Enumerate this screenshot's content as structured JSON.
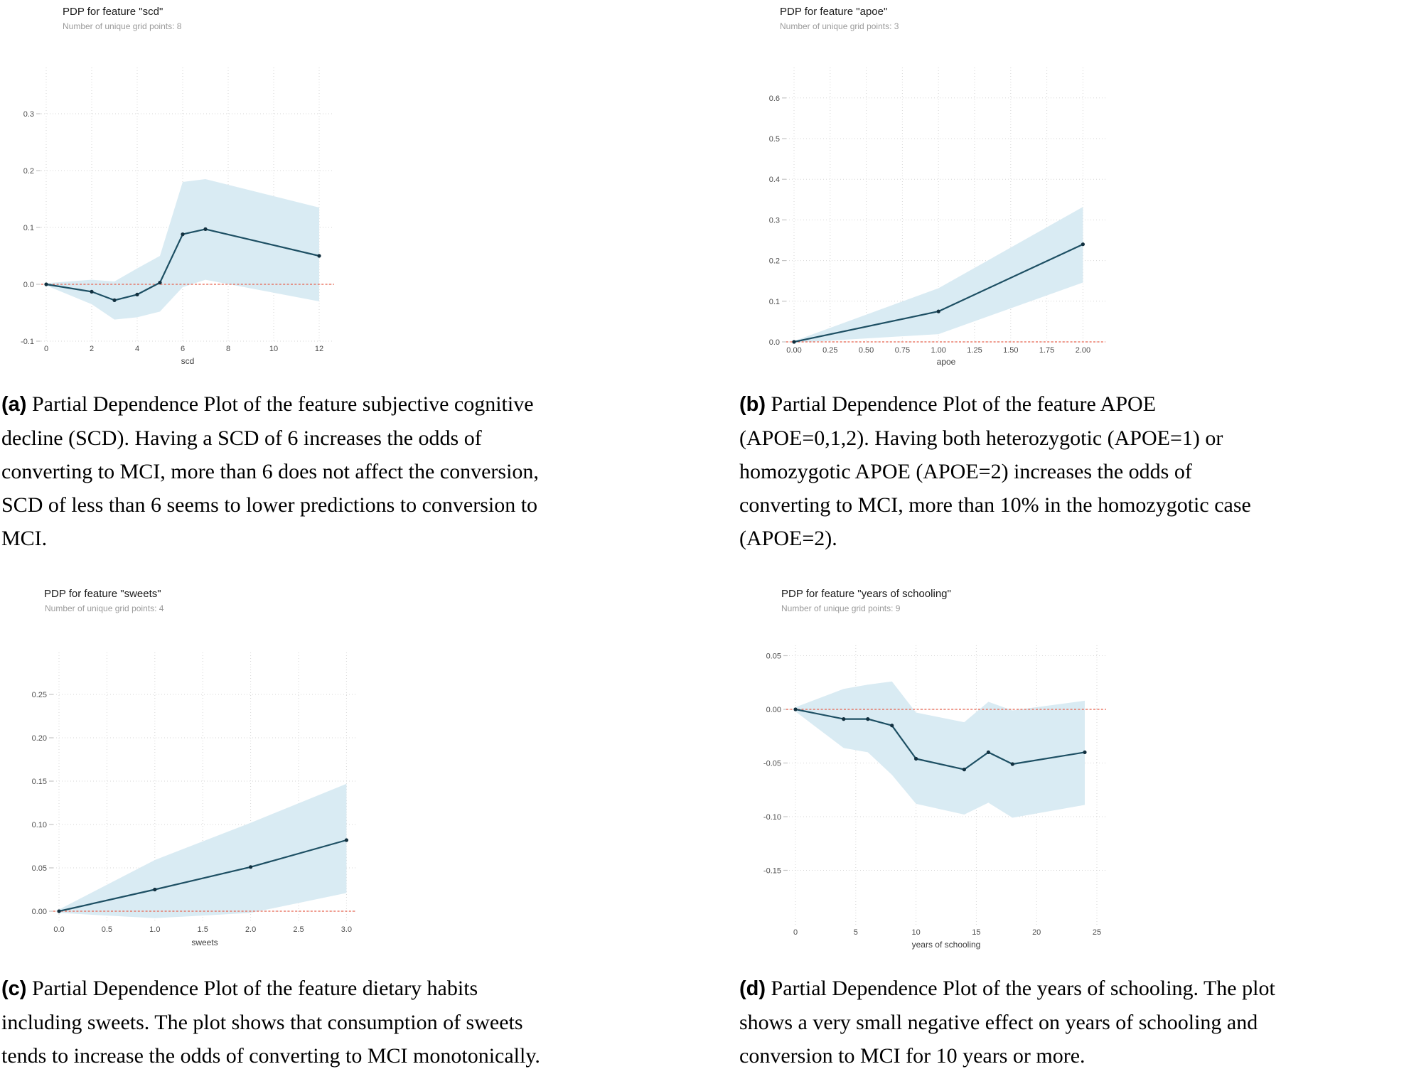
{
  "figure": {
    "description": "Four partial dependence plots (PDP) with captions",
    "accent_colors": {
      "line": "#1d4f63",
      "band": "#d9ebf3",
      "zero_line": "#e8604c",
      "gridline": "#d6d6d6",
      "subtitle_gray": "#9a9a9a"
    }
  },
  "chart_data": [
    {
      "id": "a",
      "type": "line",
      "title": "PDP for feature \"scd\"",
      "subtitle": "Number of unique grid points: 8",
      "xlabel": "scd",
      "ylabel": "",
      "x": [
        0,
        2,
        3,
        4,
        5,
        6,
        7,
        12
      ],
      "y": [
        0.0,
        -0.013,
        -0.028,
        -0.018,
        0.003,
        0.088,
        0.097,
        0.05
      ],
      "band_upper": [
        0.002,
        0.008,
        0.005,
        0.028,
        0.05,
        0.18,
        0.185,
        0.135
      ],
      "band_lower": [
        -0.002,
        -0.035,
        -0.062,
        -0.058,
        -0.048,
        -0.005,
        0.008,
        -0.03
      ],
      "xticks": [
        0,
        2,
        4,
        6,
        8,
        10,
        12
      ],
      "xtick_labels": [
        "0",
        "2",
        "4",
        "6",
        "8",
        "10",
        "12"
      ],
      "yticks": [
        0.3,
        0.2,
        0.1,
        0.0,
        -0.1
      ],
      "ytick_labels": [
        "0.3",
        "0.2",
        "0.1",
        "0.0",
        "-0.1"
      ],
      "xlim": [
        -0.22,
        12.65
      ],
      "ylim": [
        -0.1,
        0.38
      ],
      "zero_line": 0.0,
      "grid": true,
      "legend": "none"
    },
    {
      "id": "b",
      "type": "line",
      "title": "PDP for feature \"apoe\"",
      "subtitle": "Number of unique grid points: 3",
      "xlabel": "apoe",
      "ylabel": "",
      "x": [
        0,
        1,
        2
      ],
      "y": [
        0.0,
        0.075,
        0.24
      ],
      "band_upper": [
        0.002,
        0.132,
        0.332
      ],
      "band_lower": [
        -0.002,
        0.019,
        0.146
      ],
      "xticks": [
        0,
        0.25,
        0.5,
        0.75,
        1,
        1.25,
        1.5,
        1.75,
        2
      ],
      "xtick_labels": [
        "0.00",
        "0.25",
        "0.50",
        "0.75",
        "1.00",
        "1.25",
        "1.50",
        "1.75",
        "2.00"
      ],
      "yticks": [
        0.6,
        0.5,
        0.4,
        0.3,
        0.2,
        0.1,
        0.0
      ],
      "ytick_labels": [
        "0.6",
        "0.5",
        "0.4",
        "0.3",
        "0.2",
        "0.1",
        "0.0"
      ],
      "xlim": [
        -0.05,
        2.15
      ],
      "ylim": [
        -0.005,
        0.675
      ],
      "zero_line": 0.0,
      "grid": true,
      "legend": "none"
    },
    {
      "id": "c",
      "type": "line",
      "title": "PDP for feature \"sweets\"",
      "subtitle": "Number of unique grid points: 4",
      "xlabel": "sweets",
      "ylabel": "",
      "x": [
        0,
        1,
        2,
        3
      ],
      "y": [
        0.0,
        0.025,
        0.051,
        0.082
      ],
      "band_upper": [
        0.002,
        0.059,
        0.102,
        0.147
      ],
      "band_lower": [
        -0.002,
        -0.008,
        -0.002,
        0.021
      ],
      "xticks": [
        0,
        0.5,
        1,
        1.5,
        2,
        2.5,
        3
      ],
      "xtick_labels": [
        "0.0",
        "0.5",
        "1.0",
        "1.5",
        "2.0",
        "2.5",
        "3.0"
      ],
      "yticks": [
        0.25,
        0.2,
        0.15,
        0.1,
        0.05,
        0.0
      ],
      "ytick_labels": [
        "0.25",
        "0.20",
        "0.15",
        "0.10",
        "0.05",
        "0.00"
      ],
      "xlim": [
        -0.06,
        3.09
      ],
      "ylim": [
        -0.012,
        0.298
      ],
      "zero_line": 0.0,
      "grid": true,
      "legend": "none"
    },
    {
      "id": "d",
      "type": "line",
      "title": "PDP for feature \"years of schooling\"",
      "subtitle": "Number of unique grid points: 9",
      "xlabel": "years of schooling",
      "ylabel": "",
      "x": [
        0,
        4,
        6,
        8,
        10,
        14,
        16,
        18,
        24
      ],
      "y": [
        0.0,
        -0.009,
        -0.009,
        -0.015,
        -0.046,
        -0.056,
        -0.04,
        -0.051,
        -0.04
      ],
      "band_upper": [
        0.002,
        0.019,
        0.023,
        0.026,
        -0.003,
        -0.012,
        0.007,
        -0.001,
        0.008
      ],
      "band_lower": [
        -0.002,
        -0.036,
        -0.04,
        -0.061,
        -0.088,
        -0.098,
        -0.087,
        -0.101,
        -0.089
      ],
      "xticks": [
        0,
        5,
        10,
        15,
        20,
        25
      ],
      "xtick_labels": [
        "0",
        "5",
        "10",
        "15",
        "20",
        "25"
      ],
      "yticks": [
        0.05,
        0.0,
        -0.05,
        -0.1,
        -0.15
      ],
      "ytick_labels": [
        "0.05",
        "0.00",
        "-0.05",
        "-0.10",
        "-0.15"
      ],
      "xlim": [
        -0.8,
        25.8
      ],
      "ylim": [
        -0.2,
        0.058
      ],
      "zero_line": 0.0,
      "grid": true,
      "legend": "none"
    }
  ],
  "captions": [
    {
      "label": "(a)",
      "text": "Partial Dependence Plot of the feature subjective cognitive\ndecline (SCD). Having a SCD of 6 increases the odds of\nconverting to MCI, more than 6 does not affect the conversion,\nSCD of less than 6 seems to lower predictions to conversion to\nMCI."
    },
    {
      "label": "(b)",
      "text": "Partial Dependence Plot of the feature APOE\n(APOE=0,1,2). Having both heterozygotic (APOE=1) or\nhomozygotic APOE (APOE=2) increases the odds of\nconverting to MCI, more than 10% in the homozygotic case\n(APOE=2)."
    },
    {
      "label": "(c)",
      "text": "Partial Dependence Plot of the feature dietary habits\nincluding sweets. The plot shows that consumption of sweets\ntends to increase the odds of converting to MCI monotonically."
    },
    {
      "label": "(d)",
      "text": "Partial Dependence Plot of the years of schooling. The plot\nshows a very small negative effect on years of schooling and\nconversion to MCI for 10 years or more."
    }
  ]
}
